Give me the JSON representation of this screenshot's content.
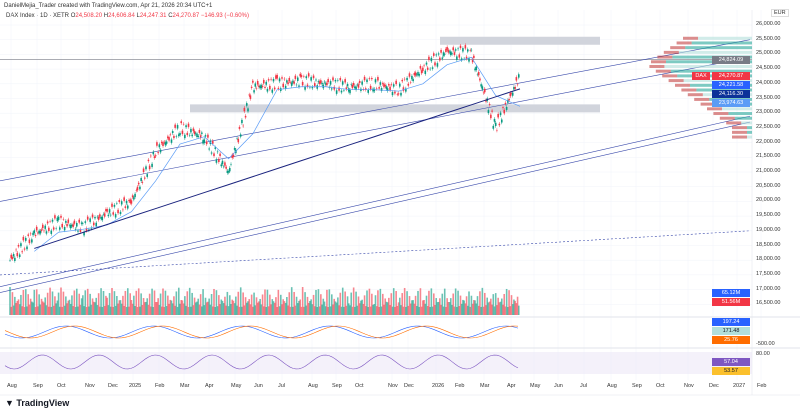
{
  "credit": "DanielMejia_Trader created with TradingView.com, Apr 21, 2026 20:34 UTC+1",
  "legend": {
    "symbol": "DAX Index · 1D · XETR",
    "o_label": "O",
    "o": "24,508.20",
    "h_label": "H",
    "h": "24,606.84",
    "l_label": "L",
    "l": "24,247.31",
    "c_label": "C",
    "c": "24,270.87",
    "change": "−146.93 (−0.60%)"
  },
  "currency": "EUR",
  "price_axis": [
    "26,000.00",
    "25,500.00",
    "25,000.00",
    "24,500.00",
    "24,000.00",
    "23,500.00",
    "23,000.00",
    "22,500.00",
    "22,000.00",
    "21,500.00",
    "21,000.00",
    "20,500.00",
    "20,000.00",
    "19,500.00",
    "19,000.00",
    "18,500.00",
    "18,000.00",
    "17,500.00",
    "17,000.00",
    "16,500.00"
  ],
  "tags": [
    {
      "text": "24,824.09",
      "color": "#787b86",
      "price": 24824
    },
    {
      "text": "24,270.87",
      "color": "#f23645",
      "price": 24270,
      "label": "DAX"
    },
    {
      "text": "24,221.58",
      "color": "#2962ff",
      "price": 24160
    },
    {
      "text": "24,116.30",
      "color": "#0c3299",
      "price": 24000
    },
    {
      "text": "23,974.63",
      "color": "#5b9cf6",
      "price": 23840
    }
  ],
  "volume_tags": [
    {
      "text": "65.12M",
      "color": "#2962ff"
    },
    {
      "text": "51.56M",
      "color": "#f23645"
    }
  ],
  "macd_tags": [
    {
      "text": "197.24",
      "color": "#2962ff"
    },
    {
      "text": "171.48",
      "color": "#b2dfdb",
      "dark": true
    },
    {
      "text": "25.76",
      "color": "#ff6d00"
    }
  ],
  "macd_axis": "-500.00",
  "rsi_axis": "80.00",
  "rsi_tags": [
    {
      "text": "57.04",
      "color": "#7e57c2"
    },
    {
      "text": "53.57",
      "color": "#fbc02d",
      "dark": true
    }
  ],
  "time_axis": [
    "Aug",
    "Sep",
    "Oct",
    "Nov",
    "Dec",
    "2025",
    "Feb",
    "Mar",
    "Apr",
    "May",
    "Jun",
    "Jul",
    "Aug",
    "Sep",
    "Oct",
    "Nov",
    "Dec",
    "2026",
    "Feb",
    "Mar",
    "Apr",
    "May",
    "Jun",
    "Jul",
    "Aug",
    "Sep",
    "Oct",
    "Nov",
    "Dec",
    "2027",
    "Feb"
  ],
  "logo": "TradingView",
  "colors": {
    "up": "#089981",
    "down": "#f23645",
    "ma_fast": "#5b9cf6",
    "ma_slow": "#1a237e",
    "zone": "#d1d4dc"
  },
  "chart_data": {
    "type": "candlestick",
    "months": [
      "Aug 2024",
      "Sep 2024",
      "Oct 2024",
      "Nov 2024",
      "Dec 2024",
      "Jan 2025",
      "Feb 2025",
      "Mar 2025",
      "Apr 2025",
      "May 2025",
      "Jun 2025",
      "Jul 2025",
      "Aug 2025",
      "Sep 2025",
      "Oct 2025",
      "Nov 2025",
      "Dec 2025",
      "Jan 2026",
      "Feb 2026",
      "Mar 2026",
      "Apr 2026"
    ],
    "close": [
      18900,
      19300,
      19100,
      19600,
      20000,
      21700,
      22500,
      22200,
      21000,
      23900,
      24000,
      24100,
      24000,
      23900,
      24000,
      23800,
      24500,
      25100,
      25000,
      22500,
      24270
    ],
    "low": [
      17800,
      18400,
      18900,
      18900,
      19500,
      20000,
      21700,
      21800,
      18500,
      21000,
      23300,
      23500,
      23500,
      23300,
      23500,
      23400,
      23600,
      24500,
      24300,
      22000,
      22500
    ],
    "high": [
      19000,
      19500,
      19700,
      19800,
      20500,
      21800,
      22900,
      23400,
      22400,
      24000,
      24500,
      24500,
      24600,
      24300,
      24700,
      24400,
      24700,
      25500,
      25300,
      25000,
      24600
    ],
    "ylim": [
      16500,
      26000
    ]
  }
}
